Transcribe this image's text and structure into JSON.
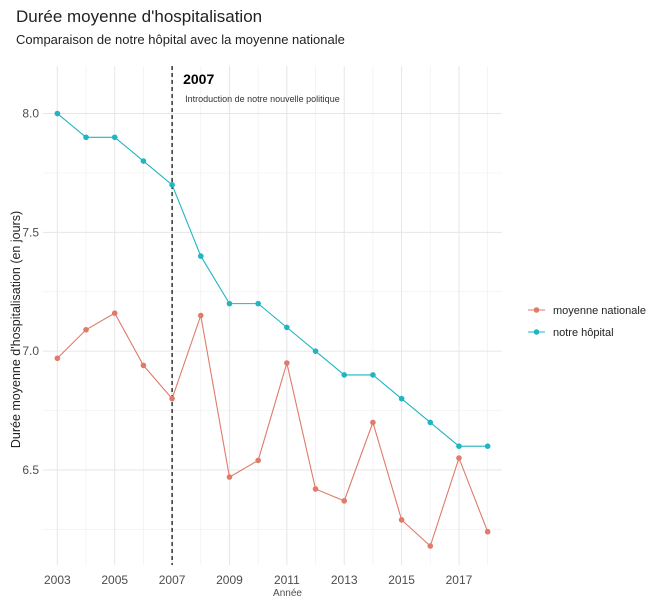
{
  "chart_data": {
    "type": "line",
    "title": "Durée moyenne d'hospitalisation",
    "subtitle": "Comparaison de notre hôpital avec la moyenne nationale",
    "xlabel": "Année",
    "ylabel": "Durée moyenne d'hospitalisation (en jours)",
    "x": [
      2003,
      2004,
      2005,
      2006,
      2007,
      2008,
      2009,
      2010,
      2011,
      2012,
      2013,
      2014,
      2015,
      2016,
      2017,
      2018
    ],
    "xlim": [
      2002.5,
      2018.5
    ],
    "ylim": [
      6.1,
      8.2
    ],
    "x_ticks": [
      2003,
      2005,
      2007,
      2009,
      2011,
      2013,
      2015,
      2017
    ],
    "y_ticks": [
      6.5,
      7.0,
      7.5,
      8.0
    ],
    "y_tick_labels": [
      "6.5",
      "7.0",
      "7.5",
      "8.0"
    ],
    "grid": true,
    "legend_position": "right",
    "series": [
      {
        "name": "moyenne nationale",
        "color": "#e07a6b",
        "values": [
          6.97,
          7.09,
          7.16,
          6.94,
          6.8,
          7.15,
          6.47,
          6.54,
          6.95,
          6.42,
          6.37,
          6.7,
          6.29,
          6.18,
          6.55,
          6.24
        ]
      },
      {
        "name": "notre hôpital",
        "color": "#1fb5c2",
        "values": [
          8.0,
          7.9,
          7.9,
          7.8,
          7.7,
          7.4,
          7.2,
          7.2,
          7.1,
          7.0,
          6.9,
          6.9,
          6.8,
          6.7,
          6.6,
          6.6
        ]
      }
    ],
    "annotation": {
      "x": 2007,
      "label": "2007",
      "text": "Introduction de notre nouvelle politique"
    }
  }
}
